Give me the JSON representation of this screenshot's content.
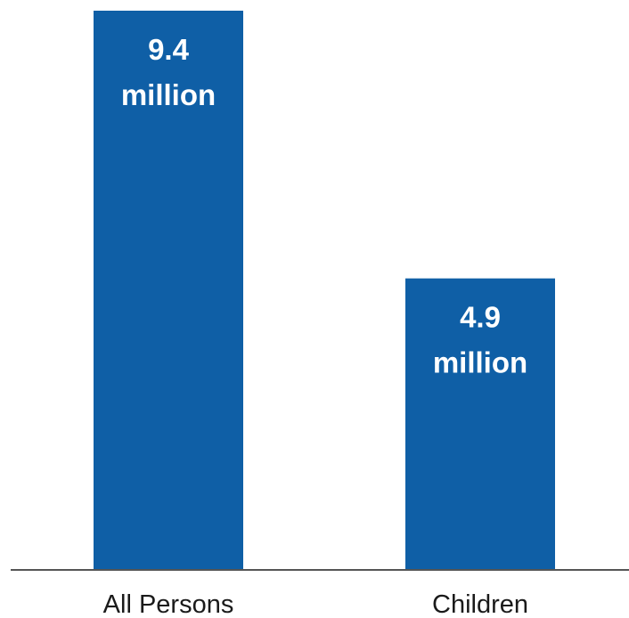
{
  "chart_data": {
    "type": "bar",
    "categories": [
      "All Persons",
      "Children"
    ],
    "values": [
      9.4,
      4.9
    ],
    "data_labels": [
      [
        "9.4",
        "million"
      ],
      [
        "4.9",
        "million"
      ]
    ],
    "unit": "million",
    "ylim": [
      0,
      9.4
    ],
    "grid": false,
    "legend": "none",
    "colors": {
      "bar": "#0f5fa6",
      "axis": "#555555",
      "text": "#1a1a1a",
      "label": "#ffffff"
    }
  }
}
